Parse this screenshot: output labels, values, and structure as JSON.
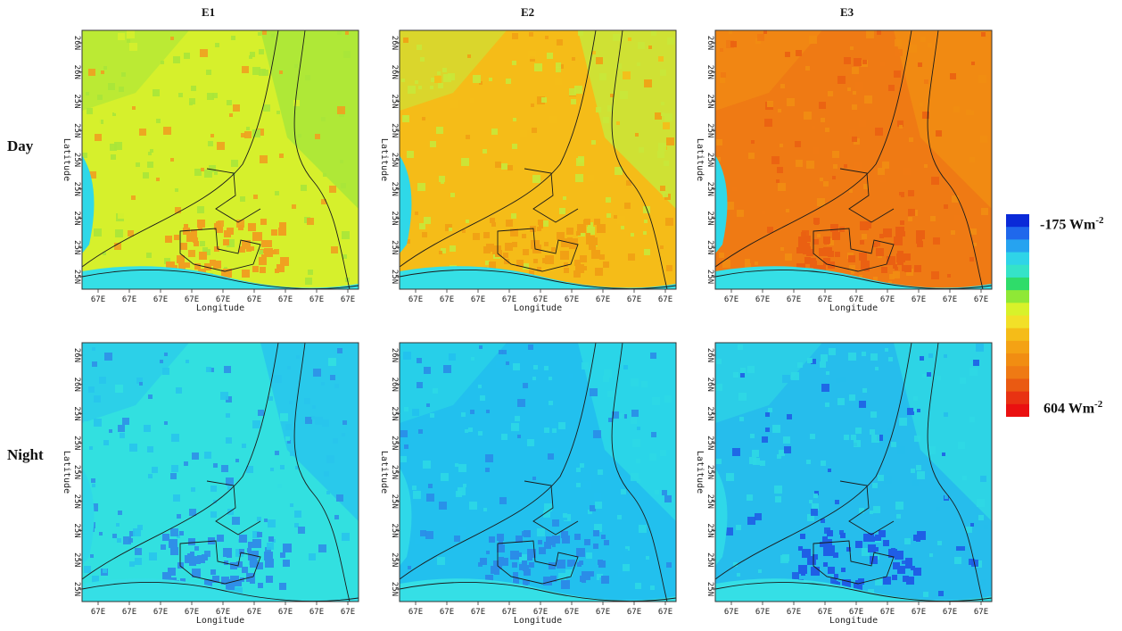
{
  "figure": {
    "column_titles": [
      "E1",
      "E2",
      "E3"
    ],
    "row_labels": [
      "Day",
      "Night"
    ]
  },
  "chart_data": {
    "type": "heatmap",
    "colorbar": {
      "min_label": "-175 Wm",
      "max_label": "604 Wm",
      "exponent": "-2",
      "min": -175,
      "max": 604,
      "colors": [
        "#0a2ad8",
        "#1f68ec",
        "#26a3f0",
        "#2fd4e8",
        "#35e3c8",
        "#2fdc6a",
        "#8fe836",
        "#d8f22a",
        "#f2e028",
        "#f5bc18",
        "#f4a214",
        "#f18d12",
        "#ef7a14",
        "#ea5a12",
        "#e83212",
        "#ea1010"
      ]
    },
    "axes": {
      "xlabel": "Longitude",
      "ylabel": "Latitude",
      "x_tick_label": "67E",
      "y_tick_labels": [
        "26N",
        "26N",
        "25N",
        "25N",
        "25N",
        "25N",
        "25N",
        "25N",
        "25N"
      ]
    },
    "panels": [
      {
        "row": "Day",
        "column": "E1",
        "dominant_color": "#d6f02c",
        "secondary_color": "#a8e63a",
        "hot_color": "#f0a020"
      },
      {
        "row": "Day",
        "column": "E2",
        "dominant_color": "#f5bc18",
        "secondary_color": "#c8e83a",
        "hot_color": "#f1a014"
      },
      {
        "row": "Day",
        "column": "E3",
        "dominant_color": "#ef7a14",
        "secondary_color": "#f18d12",
        "hot_color": "#ea6012"
      },
      {
        "row": "Night",
        "column": "E1",
        "dominant_color": "#32e0e0",
        "secondary_color": "#28c4ec",
        "hot_color": "#2f8fe8"
      },
      {
        "row": "Night",
        "column": "E2",
        "dominant_color": "#22c0ee",
        "secondary_color": "#2cd8e6",
        "hot_color": "#2a8ce8"
      },
      {
        "row": "Night",
        "column": "E3",
        "dominant_color": "#26bdec",
        "secondary_color": "#2fd8e4",
        "hot_color": "#1f5ee6"
      }
    ]
  }
}
